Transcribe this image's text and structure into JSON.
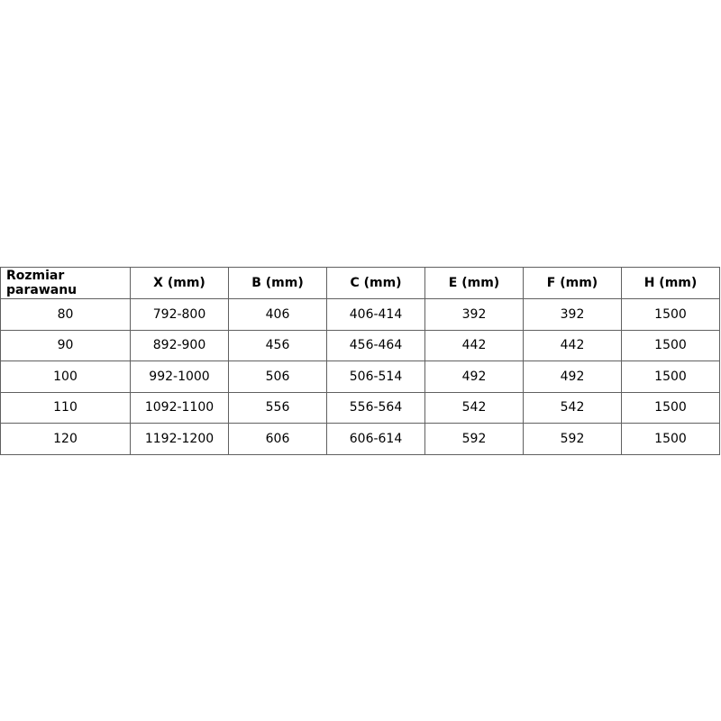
{
  "table": {
    "headers": [
      "Rozmiar parawanu",
      "X (mm)",
      "B (mm)",
      "C (mm)",
      "E (mm)",
      "F (mm)",
      "H (mm)"
    ],
    "rows": [
      [
        "80",
        "792-800",
        "406",
        "406-414",
        "392",
        "392",
        "1500"
      ],
      [
        "90",
        "892-900",
        "456",
        "456-464",
        "442",
        "442",
        "1500"
      ],
      [
        "100",
        "992-1000",
        "506",
        "506-514",
        "492",
        "492",
        "1500"
      ],
      [
        "110",
        "1092-1100",
        "556",
        "556-564",
        "542",
        "542",
        "1500"
      ],
      [
        "120",
        "1192-1200",
        "606",
        "606-614",
        "592",
        "592",
        "1500"
      ]
    ]
  }
}
